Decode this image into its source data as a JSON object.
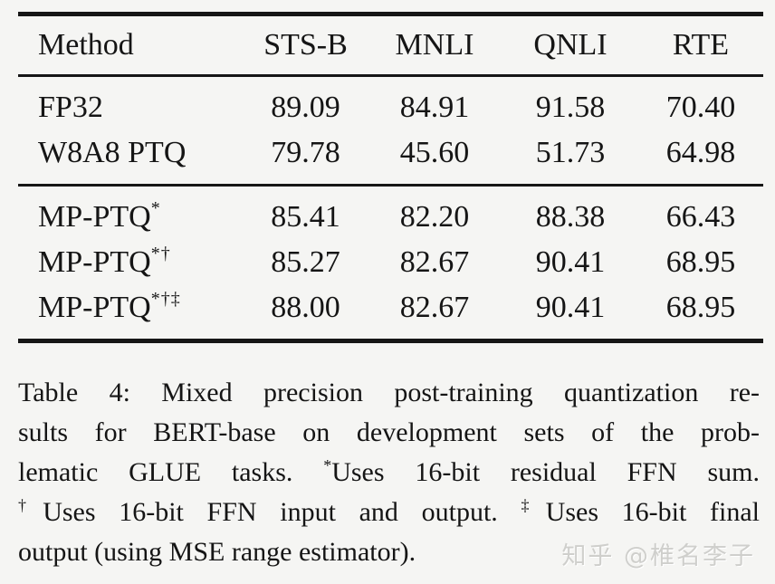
{
  "page": {
    "background_color": "#f5f5f3",
    "text_color": "#151515",
    "rule_color": "#161616"
  },
  "table": {
    "headers": [
      "Method",
      "STS-B",
      "MNLI",
      "QNLI",
      "RTE"
    ],
    "rows": [
      {
        "method": "FP32",
        "marker": "",
        "values": [
          "89.09",
          "84.91",
          "91.58",
          "70.40"
        ]
      },
      {
        "method": "W8A8 PTQ",
        "marker": "",
        "values": [
          "79.78",
          "45.60",
          "51.73",
          "64.98"
        ]
      },
      {
        "method": "MP-PTQ",
        "marker": "*",
        "values": [
          "85.41",
          "82.20",
          "88.38",
          "66.43"
        ]
      },
      {
        "method": "MP-PTQ",
        "marker": "*†",
        "values": [
          "85.27",
          "82.67",
          "90.41",
          "68.95"
        ]
      },
      {
        "method": "MP-PTQ",
        "marker": "*†‡",
        "values": [
          "88.00",
          "82.67",
          "90.41",
          "68.95"
        ]
      }
    ]
  },
  "caption": {
    "l1": "Table 4: Mixed precision post-training quantization re-",
    "l2": "sults for BERT-base on development sets of the prob-",
    "l3_pre": "lematic GLUE tasks. ",
    "l3_sup": "*",
    "l3_post": "Uses 16-bit residual FFN sum.",
    "l4_sup1": "†",
    "l4_t1": "Uses 16-bit FFN input and output. ",
    "l4_sup2": "‡",
    "l4_t2": "Uses 16-bit final",
    "l5": "output (using MSE range estimator)."
  },
  "watermark": {
    "text": "知乎 @椎名李子"
  }
}
